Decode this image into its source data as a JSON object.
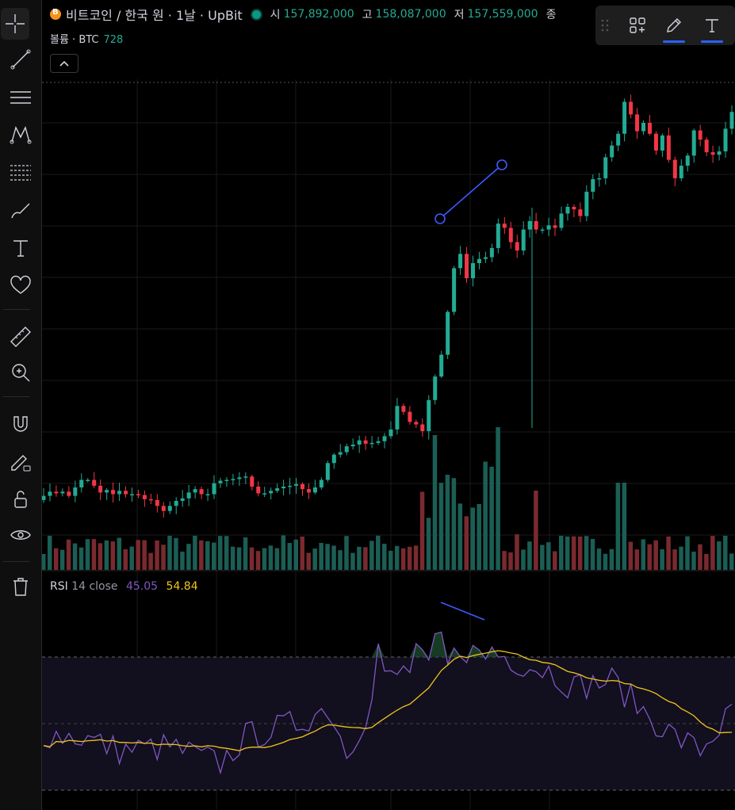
{
  "legend": {
    "title": "비트코인 / 한국 원 · 1날 · UpBit",
    "ohlc": [
      {
        "label": "시",
        "value": "157,892,000"
      },
      {
        "label": "고",
        "value": "158,087,000"
      },
      {
        "label": "저",
        "value": "157,559,000"
      },
      {
        "label": "종",
        "value": ""
      }
    ]
  },
  "volume_legend": {
    "label": "볼륨 · BTC",
    "value": "728"
  },
  "rsi_legend": {
    "name": "RSI",
    "params": "14 close",
    "rsi_value": "45.05",
    "ma_value": "54.84"
  },
  "colors": {
    "up": "#22ab94",
    "down": "#f23645",
    "rsi": "#7e57c2",
    "rsi_ma": "#f0c419",
    "drawing": "#3d5afe",
    "grid": "#1a1a1a"
  },
  "toolbar": {
    "tools": [
      "crosshair-icon",
      "trend-line-icon",
      "horizontal-lines-icon",
      "pattern-icon",
      "fib-icon",
      "brush-icon",
      "text-icon",
      "heart-icon",
      "ruler-icon",
      "zoom-icon",
      "magnet-icon",
      "lock-pencil-icon",
      "unlock-icon",
      "eye-icon",
      "trash-icon"
    ]
  },
  "float_toolbar": {
    "items": [
      "drag-handle-icon",
      "add-panel-icon",
      "pencil-icon",
      "text-tool-icon"
    ]
  },
  "chart_data": {
    "type": "candlestick",
    "title": "비트코인 / 한국 원 · 1날 · UpBit",
    "candles_closes": [
      80.3,
      80.8,
      80.6,
      80.8,
      80.3,
      81.3,
      82.2,
      82.2,
      81.5,
      80.7,
      81.0,
      80.5,
      80.9,
      80.5,
      80.5,
      80.4,
      79.9,
      79.8,
      79.1,
      78.5,
      79.1,
      79.7,
      80.0,
      80.7,
      81.1,
      80.5,
      80.5,
      81.8,
      82.1,
      82.2,
      82.3,
      82.5,
      82.6,
      81.4,
      80.6,
      80.6,
      80.9,
      81.2,
      81.4,
      81.5,
      81.7,
      81.1,
      80.7,
      81.3,
      82.2,
      84.2,
      85.2,
      85.5,
      86.2,
      86.4,
      86.9,
      86.5,
      86.6,
      86.8,
      87.4,
      88.2,
      91.0,
      90.3,
      89.1,
      88.8,
      88.0,
      91.7,
      94.5,
      97.1,
      102.2,
      107.4,
      109.1,
      106.2,
      108.0,
      108.5,
      108.7,
      109.8,
      112.7,
      112.2,
      110.5,
      109.5,
      112.0,
      113.0,
      112.0,
      112.0,
      112.5,
      112.2,
      113.9,
      114.7,
      114.4,
      113.6,
      116.5,
      118.0,
      118.1,
      120.6,
      122.0,
      123.4,
      127.2,
      125.7,
      123.7,
      124.7,
      123.4,
      121.4,
      123.2,
      120.3,
      118.1,
      119.6,
      120.8,
      123.8,
      122.7,
      121.2,
      120.9,
      121.3,
      124.0,
      126.0
    ]
  }
}
